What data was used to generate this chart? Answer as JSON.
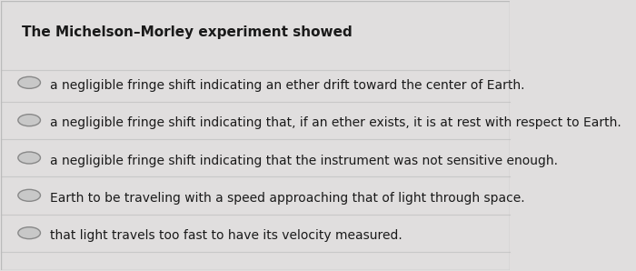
{
  "title": "The Michelson–Morley experiment showed",
  "background_color": "#e0dede",
  "panel_color": "#f0efee",
  "options": [
    "a negligible fringe shift indicating an ether drift toward the center of Earth.",
    "a negligible fringe shift indicating that, if an ether exists, it is at rest with respect to Earth.",
    "a negligible fringe shift indicating that the instrument was not sensitive enough.",
    "Earth to be traveling with a speed approaching that of light through space.",
    "that light travels too fast to have its velocity measured."
  ],
  "title_fontsize": 11.0,
  "option_fontsize": 10.0,
  "title_color": "#1a1a1a",
  "option_color": "#1a1a1a",
  "line_color": "#c8c8c8",
  "circle_edge_color": "#888888",
  "circle_face_color": "#c8c8c8"
}
